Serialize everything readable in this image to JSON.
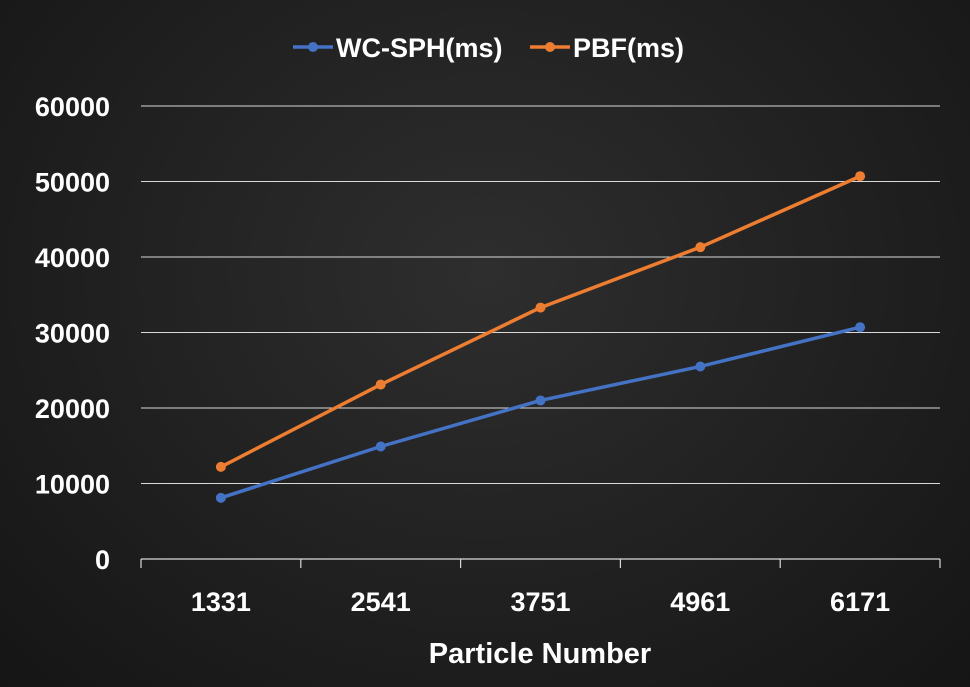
{
  "chart_data": {
    "type": "line",
    "x": [
      "1331",
      "2541",
      "3751",
      "4961",
      "6171"
    ],
    "series": [
      {
        "name": "WC-SPH(ms)",
        "color": "#4472C4",
        "values": [
          8100,
          14900,
          21000,
          25500,
          30700
        ]
      },
      {
        "name": "PBF(ms)",
        "color": "#ED7D31",
        "values": [
          12200,
          23100,
          33300,
          41300,
          50700
        ]
      }
    ],
    "title": "",
    "xlabel": "Particle Number",
    "ylabel": "",
    "ylim": [
      0,
      60000
    ],
    "yticks": [
      "0",
      "10000",
      "20000",
      "30000",
      "40000",
      "50000",
      "60000"
    ],
    "grid": true,
    "legend_position": "top"
  }
}
